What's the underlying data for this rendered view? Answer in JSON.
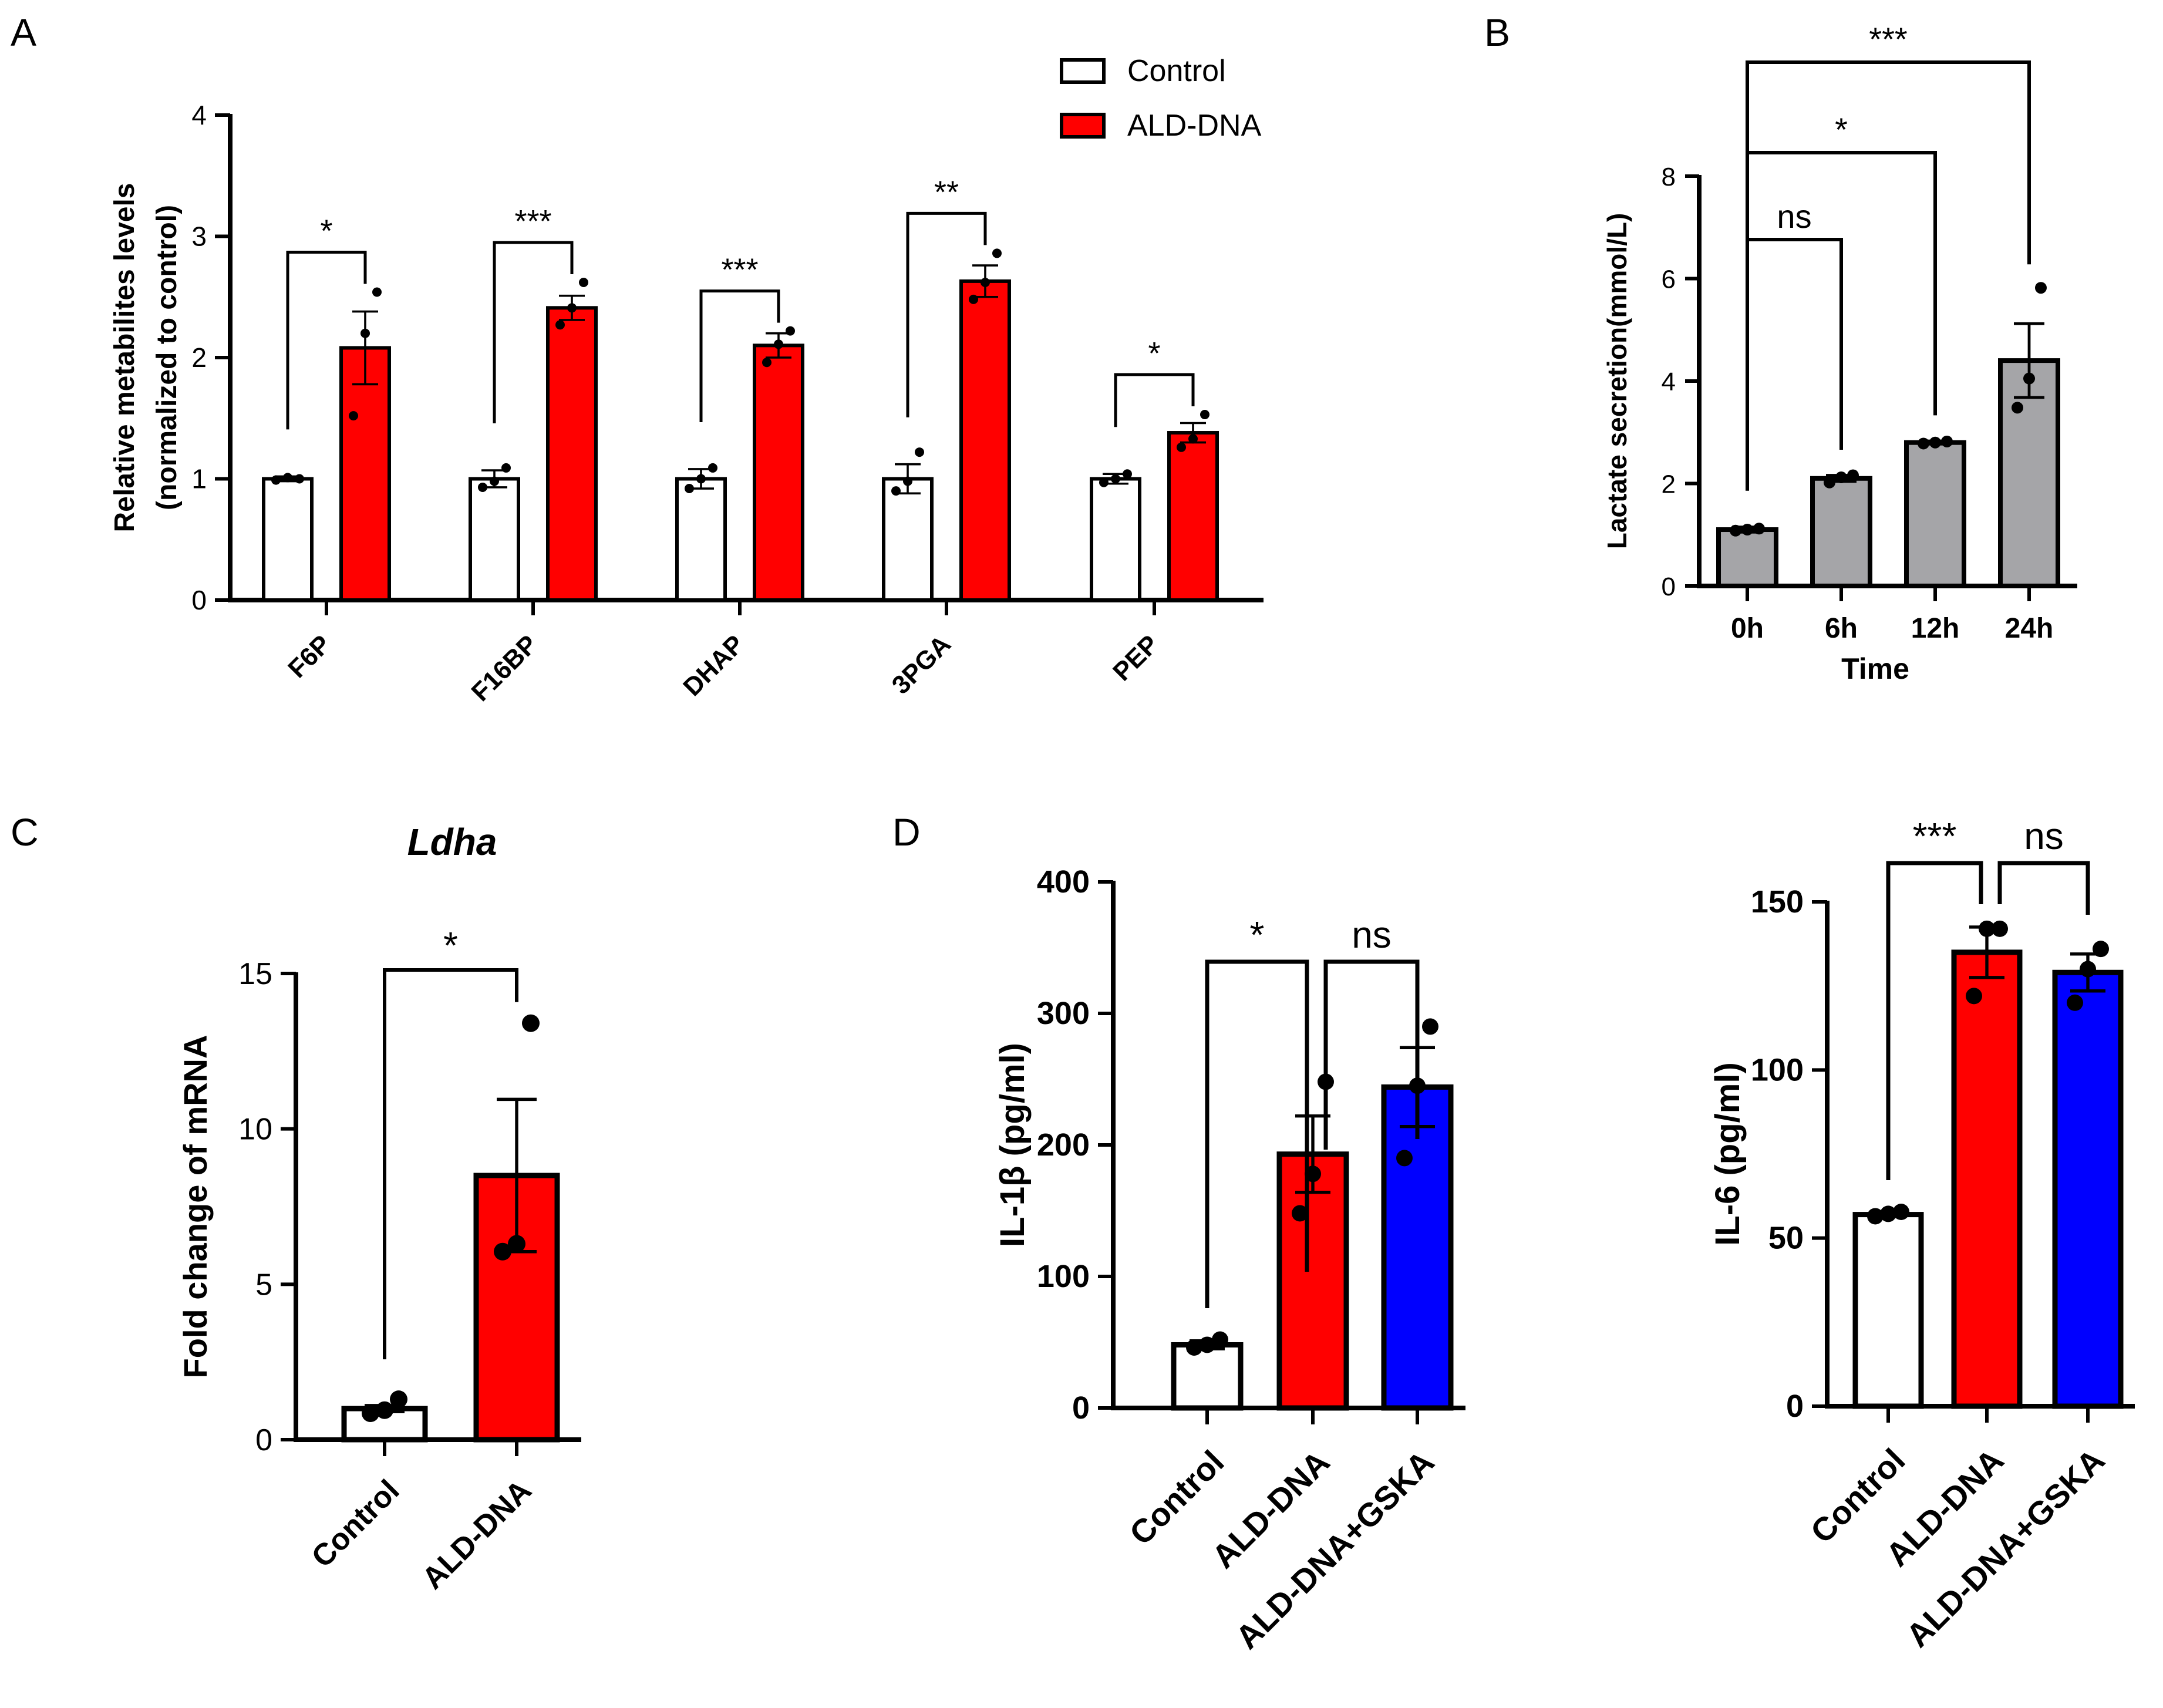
{
  "figure": {
    "panel_labels": [
      "A",
      "B",
      "C",
      "D"
    ]
  },
  "colors": {
    "control": "#ffffff",
    "ald": "#ff0000",
    "gska": "#0000ff",
    "gray": "#a5a5a8",
    "stroke": "#000000"
  },
  "chart_data": [
    {
      "id": "A",
      "type": "bar",
      "title": "",
      "ylabel_line1": "Relative metabilites levels",
      "ylabel_line2": "(normalized to control)",
      "xlabel": "",
      "ylim": [
        0,
        4
      ],
      "yticks": [
        "0",
        "1",
        "2",
        "3",
        "4"
      ],
      "categories": [
        "F6P",
        "F16BP",
        "DHAP",
        "3PGA",
        "PEP"
      ],
      "legend": [
        "Control",
        "ALD-DNA"
      ],
      "legend_position": "top-right",
      "series": [
        {
          "name": "Control",
          "values": [
            1.0,
            1.0,
            1.0,
            1.0,
            1.0
          ],
          "sem": [
            0.02,
            0.07,
            0.08,
            0.12,
            0.04
          ],
          "points": [
            [
              0.99,
              1.01,
              1.0
            ],
            [
              0.93,
              0.98,
              1.09
            ],
            [
              0.92,
              1.0,
              1.09
            ],
            [
              0.9,
              0.98,
              1.22
            ],
            [
              0.97,
              1.0,
              1.04
            ]
          ]
        },
        {
          "name": "ALD-DNA",
          "values": [
            2.08,
            2.41,
            2.1,
            2.63,
            1.38
          ],
          "sem": [
            0.3,
            0.1,
            0.1,
            0.13,
            0.08
          ],
          "points": [
            [
              1.52,
              2.2,
              2.54
            ],
            [
              2.27,
              2.41,
              2.62
            ],
            [
              1.96,
              2.11,
              2.22
            ],
            [
              2.48,
              2.62,
              2.86
            ],
            [
              1.26,
              1.33,
              1.53
            ]
          ]
        }
      ],
      "significance": [
        "*",
        "***",
        "***",
        "**",
        "*"
      ]
    },
    {
      "id": "B",
      "type": "bar",
      "title": "",
      "ylabel": "Lactate secretion(mmol/L)",
      "xlabel": "Time",
      "ylim": [
        0,
        8
      ],
      "yticks": [
        "0",
        "2",
        "4",
        "6",
        "8"
      ],
      "categories": [
        "0h",
        "6h",
        "12h",
        "24h"
      ],
      "values": [
        1.1,
        2.1,
        2.8,
        4.4
      ],
      "sem": [
        0.05,
        0.06,
        0.03,
        0.72
      ],
      "points": [
        [
          1.08,
          1.1,
          1.12
        ],
        [
          2.02,
          2.12,
          2.16
        ],
        [
          2.78,
          2.8,
          2.82
        ],
        [
          3.48,
          4.05,
          5.82
        ]
      ],
      "comparisons": [
        {
          "from": "0h",
          "to": "6h",
          "label": "ns"
        },
        {
          "from": "0h",
          "to": "12h",
          "label": "*"
        },
        {
          "from": "0h",
          "to": "24h",
          "label": "***"
        }
      ]
    },
    {
      "id": "C",
      "type": "bar",
      "title": "Ldha",
      "ylabel": "Fold change of mRNA",
      "xlabel": "",
      "ylim": [
        0,
        15
      ],
      "yticks": [
        "0",
        "5",
        "10",
        "15"
      ],
      "categories": [
        "Control",
        "ALD-DNA"
      ],
      "values": [
        1.0,
        8.5
      ],
      "sem": [
        0.1,
        2.45
      ],
      "points": [
        [
          0.85,
          0.95,
          1.3
        ],
        [
          6.05,
          6.3,
          13.4
        ]
      ],
      "comparisons": [
        {
          "from": "Control",
          "to": "ALD-DNA",
          "label": "*"
        }
      ]
    },
    {
      "id": "D1",
      "type": "bar",
      "title": "",
      "ylabel": "IL-1β (pg/ml)",
      "xlabel": "",
      "ylim": [
        0,
        400
      ],
      "yticks": [
        "0",
        "100",
        "200",
        "300",
        "400"
      ],
      "categories": [
        "Control",
        "ALD-DNA",
        "ALD-DNA+GSKA"
      ],
      "values": [
        48,
        193,
        244
      ],
      "sem": [
        3,
        29,
        30
      ],
      "points": [
        [
          46,
          48,
          52
        ],
        [
          148,
          178,
          248
        ],
        [
          190,
          245,
          290
        ]
      ],
      "comparisons": [
        {
          "from": "Control",
          "to": "ALD-DNA",
          "label": "*"
        },
        {
          "from": "ALD-DNA",
          "to": "ALD-DNA+GSKA",
          "label": "ns"
        }
      ]
    },
    {
      "id": "D2",
      "type": "bar",
      "title": "",
      "ylabel": "IL-6 (pg/ml)",
      "xlabel": "",
      "ylim": [
        0,
        150
      ],
      "yticks": [
        "0",
        "50",
        "100",
        "150"
      ],
      "categories": [
        "Control",
        "ALD-DNA",
        "ALD-DNA+GSKA"
      ],
      "values": [
        57,
        135,
        129
      ],
      "sem": [
        0.6,
        7.5,
        5.5
      ],
      "points": [
        [
          56.5,
          57.2,
          57.8
        ],
        [
          122,
          142,
          142
        ],
        [
          120,
          130,
          136
        ]
      ],
      "comparisons": [
        {
          "from": "Control",
          "to": "ALD-DNA",
          "label": "***"
        },
        {
          "from": "ALD-DNA",
          "to": "ALD-DNA+GSKA",
          "label": "ns"
        }
      ]
    }
  ]
}
